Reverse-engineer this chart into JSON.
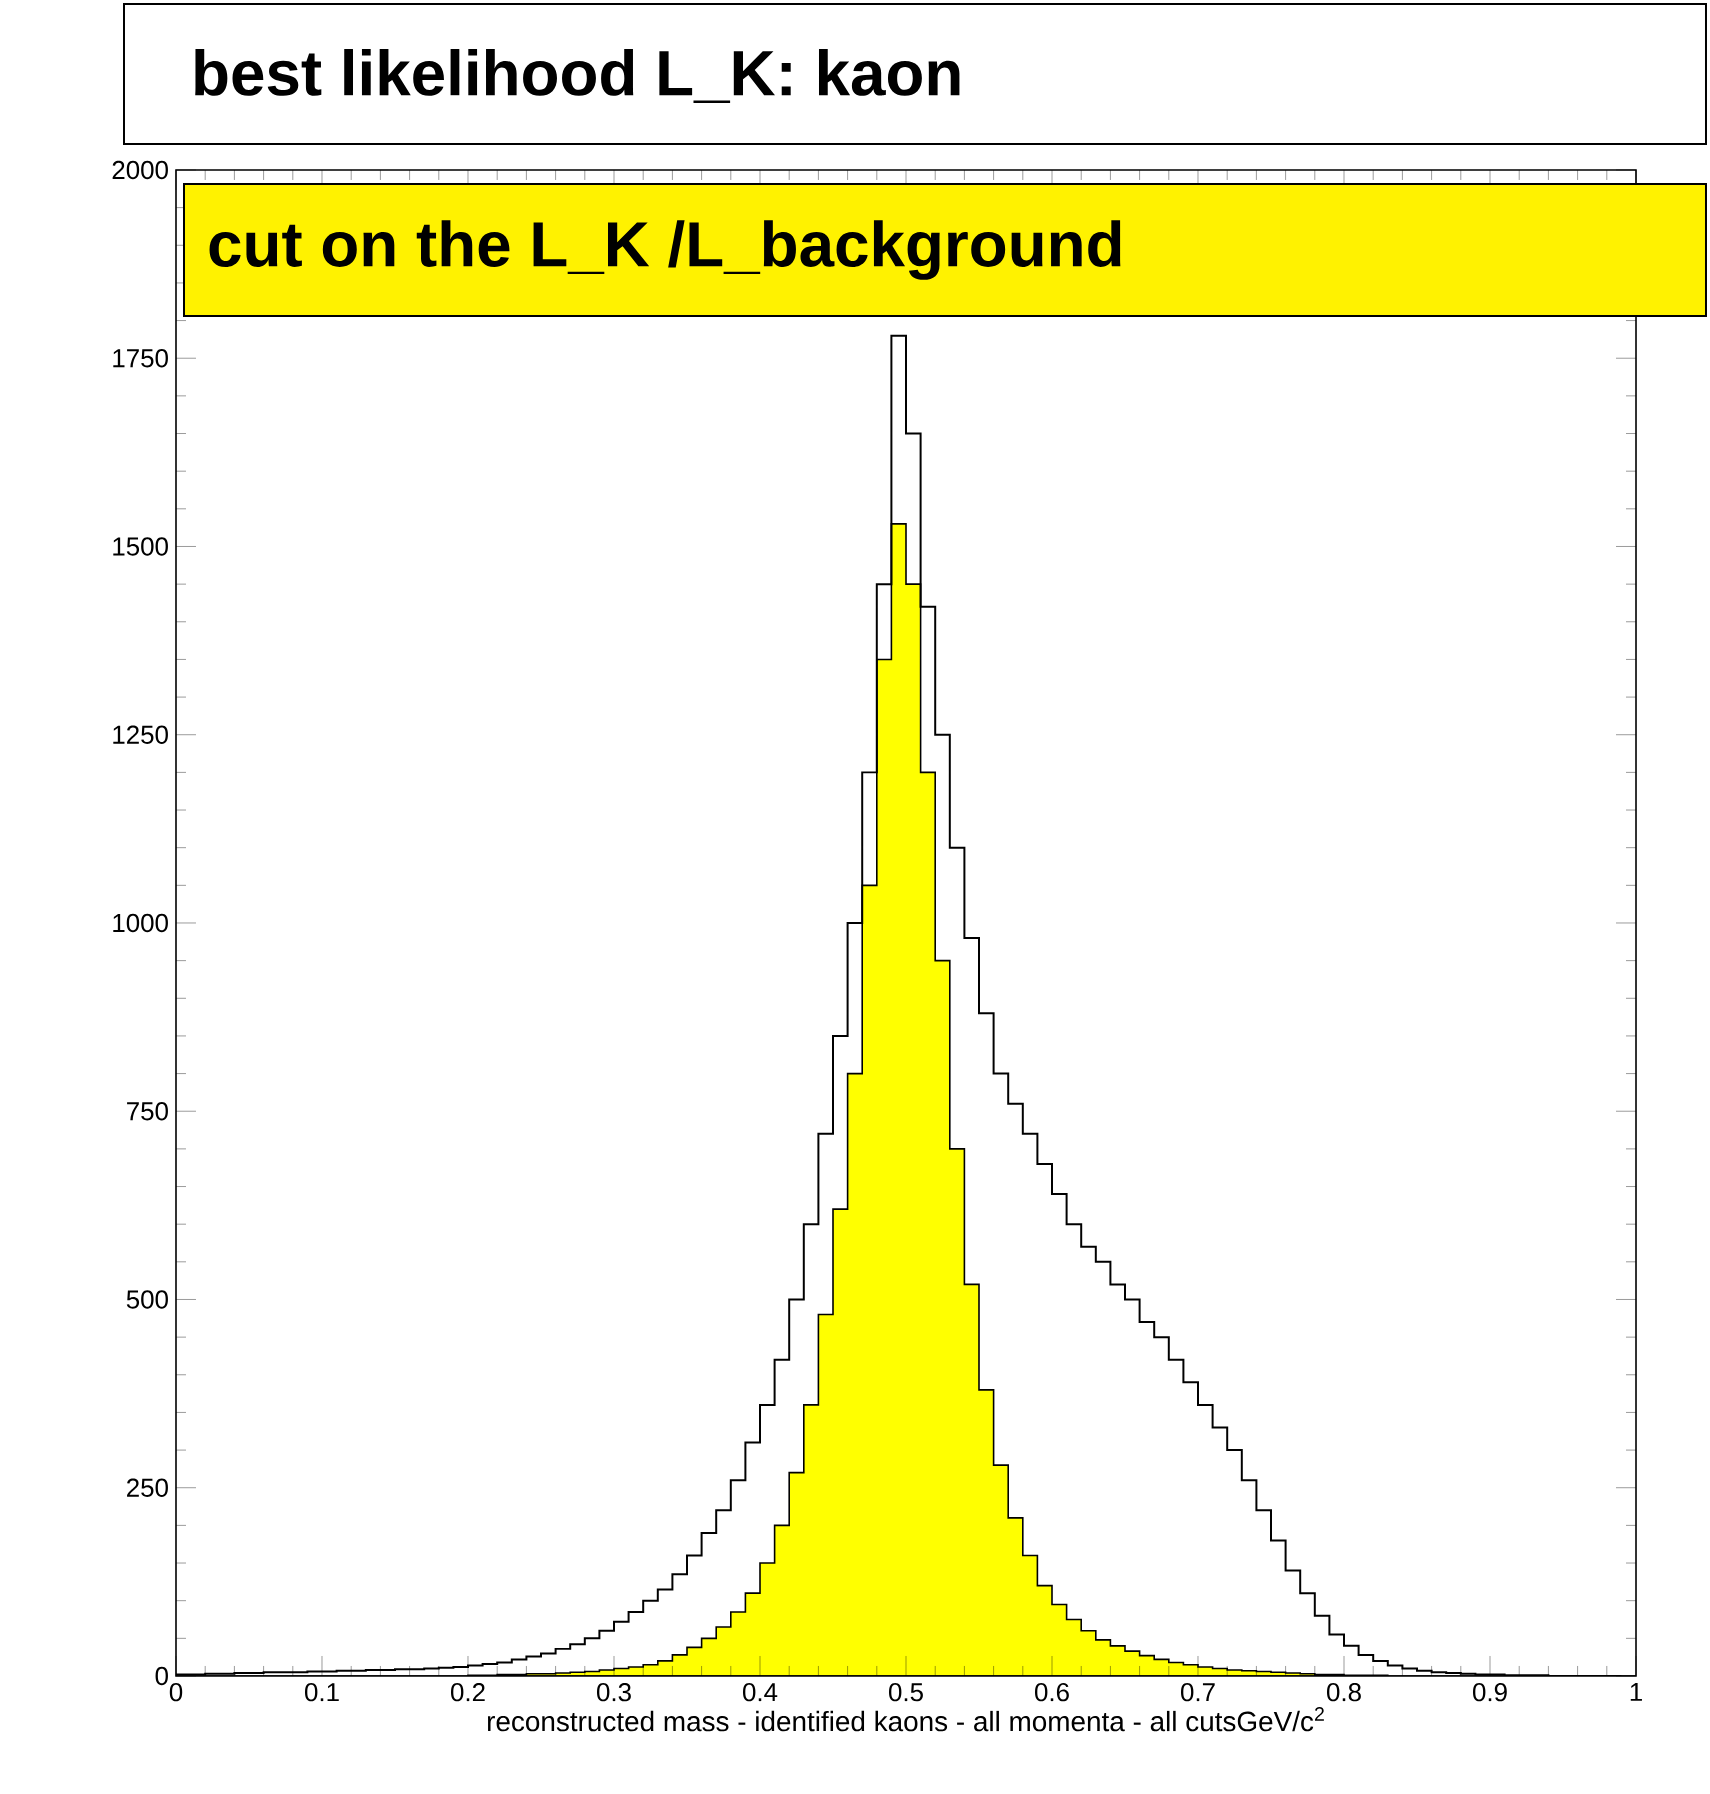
{
  "chart_data": {
    "type": "histogram",
    "title": "best likelihood L_K: kaon",
    "subtitle": "cut  on the L_K /L_background",
    "xlabel": "reconstructed mass - identified kaons - all momenta - all cutsGeV/c$^{2}$",
    "bins": [
      0,
      0.01,
      0.02,
      0.03,
      0.04,
      0.05,
      0.06,
      0.07,
      0.08,
      0.09,
      0.1,
      0.11,
      0.12,
      0.13,
      0.14,
      0.15,
      0.16,
      0.17,
      0.18,
      0.19,
      0.2,
      0.21,
      0.22,
      0.23,
      0.24,
      0.25,
      0.26,
      0.27,
      0.28,
      0.29,
      0.3,
      0.31,
      0.32,
      0.33,
      0.34,
      0.35,
      0.36,
      0.37,
      0.38,
      0.39,
      0.4,
      0.41,
      0.42,
      0.43,
      0.44,
      0.45,
      0.46,
      0.47,
      0.48,
      0.49,
      0.5,
      0.51,
      0.52,
      0.53,
      0.54,
      0.55,
      0.56,
      0.57,
      0.58,
      0.59,
      0.6,
      0.61,
      0.62,
      0.63,
      0.64,
      0.65,
      0.66,
      0.67,
      0.68,
      0.69,
      0.7,
      0.71,
      0.72,
      0.73,
      0.74,
      0.75,
      0.76,
      0.77,
      0.78,
      0.79,
      0.8,
      0.81,
      0.82,
      0.83,
      0.84,
      0.85,
      0.86,
      0.87,
      0.88,
      0.89,
      0.9,
      0.91,
      0.92,
      0.93,
      0.94,
      0.95,
      0.96,
      0.97,
      0.98,
      0.99,
      1
    ],
    "series": [
      {
        "color": "#ffff00",
        "values": [
          0,
          0,
          0,
          0,
          0,
          0,
          0,
          0,
          0,
          0,
          0,
          0,
          0,
          0,
          0,
          0,
          0,
          0,
          0,
          0,
          1,
          1,
          2,
          2,
          3,
          3,
          4,
          5,
          6,
          8,
          10,
          12,
          15,
          20,
          28,
          38,
          50,
          65,
          85,
          110,
          150,
          200,
          270,
          360,
          480,
          620,
          800,
          1050,
          1350,
          1530,
          1450,
          1200,
          950,
          700,
          520,
          380,
          280,
          210,
          160,
          120,
          95,
          75,
          60,
          48,
          40,
          33,
          27,
          22,
          18,
          15,
          12,
          10,
          8,
          7,
          6,
          5,
          4,
          3,
          2,
          2,
          1,
          1,
          1,
          0,
          0,
          0,
          0,
          0,
          0,
          0,
          0,
          0,
          0,
          0,
          0,
          0,
          0,
          0,
          0,
          0
        ]
      },
      {
        "type": "step",
        "color": "#000000",
        "x": [
          0,
          0.01,
          0.02,
          0.03,
          0.04,
          0.05,
          0.06,
          0.07,
          0.08,
          0.09,
          0.1,
          0.11,
          0.12,
          0.13,
          0.14,
          0.15,
          0.16,
          0.17,
          0.18,
          0.19,
          0.2,
          0.21,
          0.22,
          0.23,
          0.24,
          0.25,
          0.26,
          0.27,
          0.28,
          0.29,
          0.3,
          0.31,
          0.32,
          0.33,
          0.34,
          0.35,
          0.36,
          0.37,
          0.38,
          0.39,
          0.4,
          0.41,
          0.42,
          0.43,
          0.44,
          0.45,
          0.46,
          0.47,
          0.48,
          0.49,
          0.5,
          0.51,
          0.52,
          0.53,
          0.54,
          0.55,
          0.56,
          0.57,
          0.58,
          0.59,
          0.6,
          0.61,
          0.62,
          0.63,
          0.64,
          0.65,
          0.66,
          0.67,
          0.68,
          0.69,
          0.7,
          0.71,
          0.72,
          0.73,
          0.74,
          0.75,
          0.76,
          0.77,
          0.78,
          0.79,
          0.8,
          0.81,
          0.82,
          0.83,
          0.84,
          0.85,
          0.86,
          0.87,
          0.88,
          0.89,
          0.9,
          0.91,
          0.92,
          0.93,
          0.94,
          0.95,
          0.96,
          0.97,
          0.98,
          0.99
        ],
        "values": [
          2,
          2,
          3,
          3,
          4,
          4,
          5,
          5,
          5,
          6,
          6,
          7,
          7,
          8,
          8,
          9,
          9,
          10,
          11,
          12,
          14,
          16,
          18,
          22,
          26,
          30,
          36,
          42,
          50,
          60,
          72,
          85,
          100,
          115,
          135,
          160,
          190,
          220,
          260,
          310,
          360,
          420,
          500,
          600,
          720,
          850,
          1000,
          1200,
          1450,
          1780,
          1650,
          1420,
          1250,
          1100,
          980,
          880,
          800,
          760,
          720,
          680,
          640,
          600,
          570,
          550,
          520,
          500,
          470,
          450,
          420,
          390,
          360,
          330,
          300,
          260,
          220,
          180,
          140,
          110,
          80,
          55,
          40,
          28,
          20,
          14,
          10,
          7,
          5,
          4,
          3,
          2,
          2,
          1,
          1,
          1,
          0,
          0,
          0,
          0,
          0,
          0
        ]
      }
    ],
    "xlim": [
      0,
      1
    ],
    "xticks": [
      0,
      0.1,
      0.2,
      0.3,
      0.4,
      0.5,
      0.6,
      0.7,
      0.8,
      0.9,
      1
    ],
    "ylim": [
      0,
      2000
    ],
    "yticks": [
      0,
      250,
      500,
      750,
      1000,
      1250,
      1500,
      1750,
      2000
    ]
  }
}
